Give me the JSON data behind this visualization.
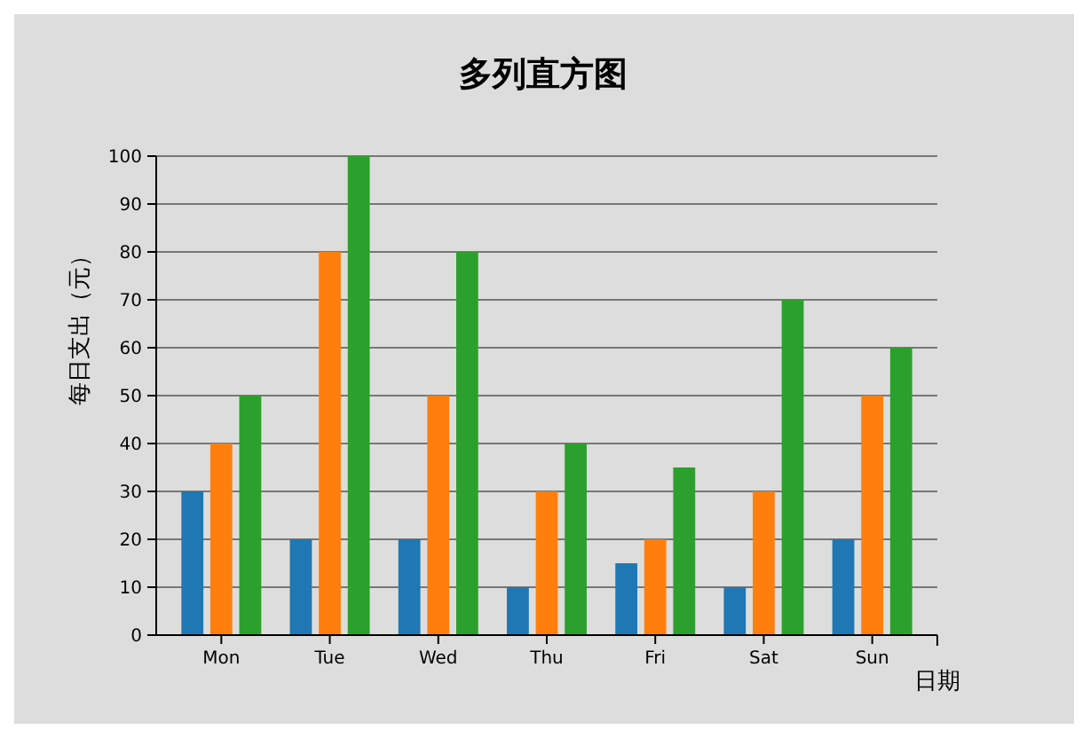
{
  "chart_data": {
    "type": "bar",
    "title": "多列直方图",
    "xlabel": "日期",
    "ylabel": "每日支出（元）",
    "categories": [
      "Mon",
      "Tue",
      "Wed",
      "Thu",
      "Fri",
      "Sat",
      "Sun"
    ],
    "series": [
      {
        "color": "#1f77b4",
        "values": [
          30,
          20,
          20,
          10,
          15,
          10,
          20
        ]
      },
      {
        "color": "#ff7f0e",
        "values": [
          40,
          80,
          50,
          30,
          20,
          30,
          50
        ]
      },
      {
        "color": "#2ca02c",
        "values": [
          50,
          100,
          80,
          40,
          35,
          70,
          60
        ]
      }
    ],
    "ylim": [
      0,
      100
    ],
    "yticks": [
      0,
      10,
      20,
      30,
      40,
      50,
      60,
      70,
      80,
      90,
      100
    ],
    "grid": "y"
  }
}
